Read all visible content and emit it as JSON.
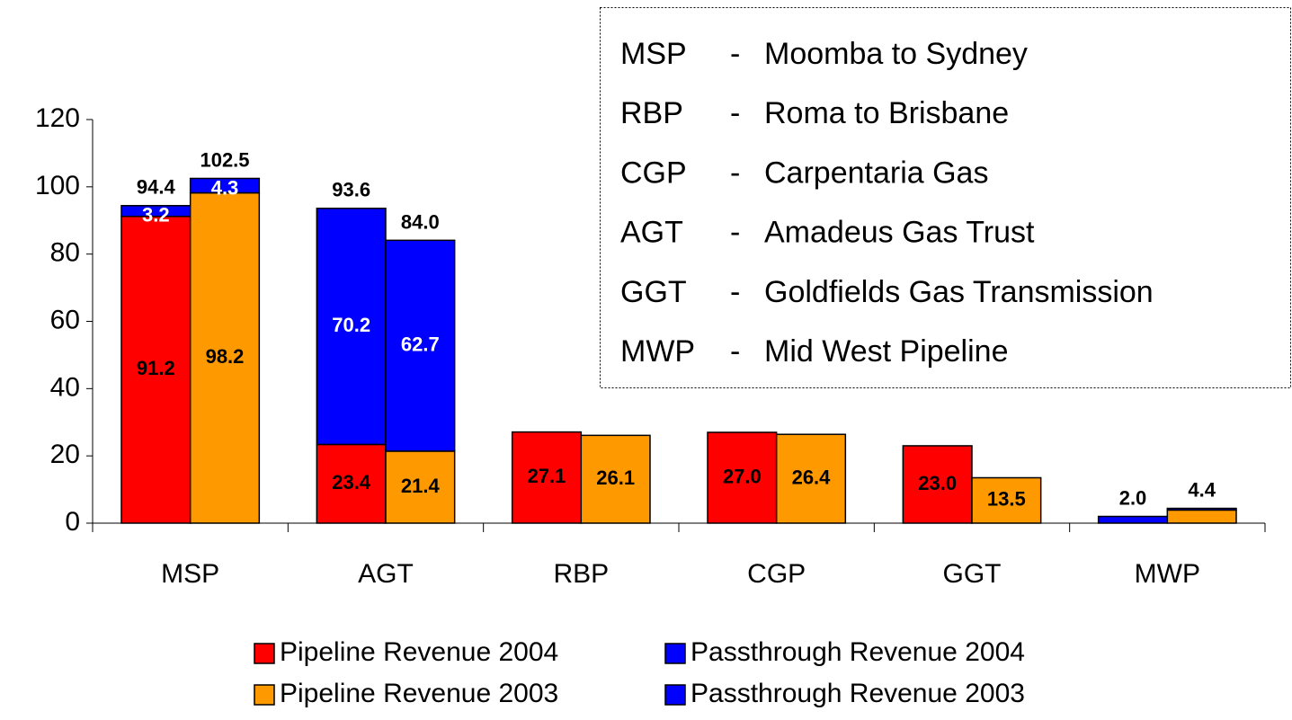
{
  "chart_data": {
    "type": "stacked_grouped_bar",
    "categories": [
      "MSP",
      "AGT",
      "RBP",
      "CGP",
      "GGT",
      "MWP"
    ],
    "series": [
      {
        "name": "Pipeline Revenue 2004",
        "color": "#ff0000",
        "stack": 0,
        "label_color": "#000000",
        "values": [
          91.2,
          23.4,
          27.1,
          27.0,
          23.0,
          null
        ],
        "value_labels": [
          "91.2",
          "23.4",
          "27.1",
          "27.0",
          "23.0",
          null
        ]
      },
      {
        "name": "Passthrough Revenue 2004",
        "color": "#0000ff",
        "stack": 0,
        "label_color": "#ffffff",
        "values": [
          3.2,
          70.2,
          null,
          null,
          null,
          2.0
        ],
        "value_labels": [
          "3.2",
          "70.2",
          null,
          null,
          null,
          null
        ]
      },
      {
        "name": "Pipeline Revenue 2003",
        "color": "#ff9900",
        "stack": 1,
        "label_color": "#000000",
        "values": [
          98.2,
          21.4,
          26.1,
          26.4,
          13.5,
          3.9
        ],
        "value_labels": [
          "98.2",
          "21.4",
          "26.1",
          "26.4",
          "13.5",
          null
        ]
      },
      {
        "name": "Passthrough Revenue 2003",
        "color": "#0000ff",
        "stack": 1,
        "label_color": "#ffffff",
        "values": [
          4.3,
          62.7,
          null,
          null,
          null,
          0.5
        ],
        "value_labels": [
          "4.3",
          "62.7",
          null,
          null,
          null,
          null
        ]
      }
    ],
    "totals": [
      {
        "stack": 0,
        "values": [
          94.4,
          93.6,
          null,
          null,
          null,
          2.0
        ],
        "value_labels": [
          "94.4",
          "93.6",
          null,
          null,
          null,
          "2.0"
        ]
      },
      {
        "stack": 1,
        "values": [
          102.5,
          84.0,
          null,
          null,
          null,
          4.4
        ],
        "value_labels": [
          "102.5",
          "84.0",
          null,
          null,
          null,
          "4.4"
        ]
      }
    ],
    "ylim": [
      0,
      120
    ],
    "yticks": [
      0,
      20,
      40,
      60,
      80,
      100,
      120
    ],
    "key": {
      "separator": "-",
      "rows": [
        {
          "code": "MSP",
          "name": "Moomba to Sydney"
        },
        {
          "code": "RBP",
          "name": "Roma to Brisbane"
        },
        {
          "code": "CGP",
          "name": "Carpentaria Gas"
        },
        {
          "code": "AGT",
          "name": "Amadeus Gas Trust"
        },
        {
          "code": "GGT",
          "name": "Goldfields Gas Transmission"
        },
        {
          "code": "MWP",
          "name": "Mid West Pipeline"
        }
      ]
    }
  }
}
